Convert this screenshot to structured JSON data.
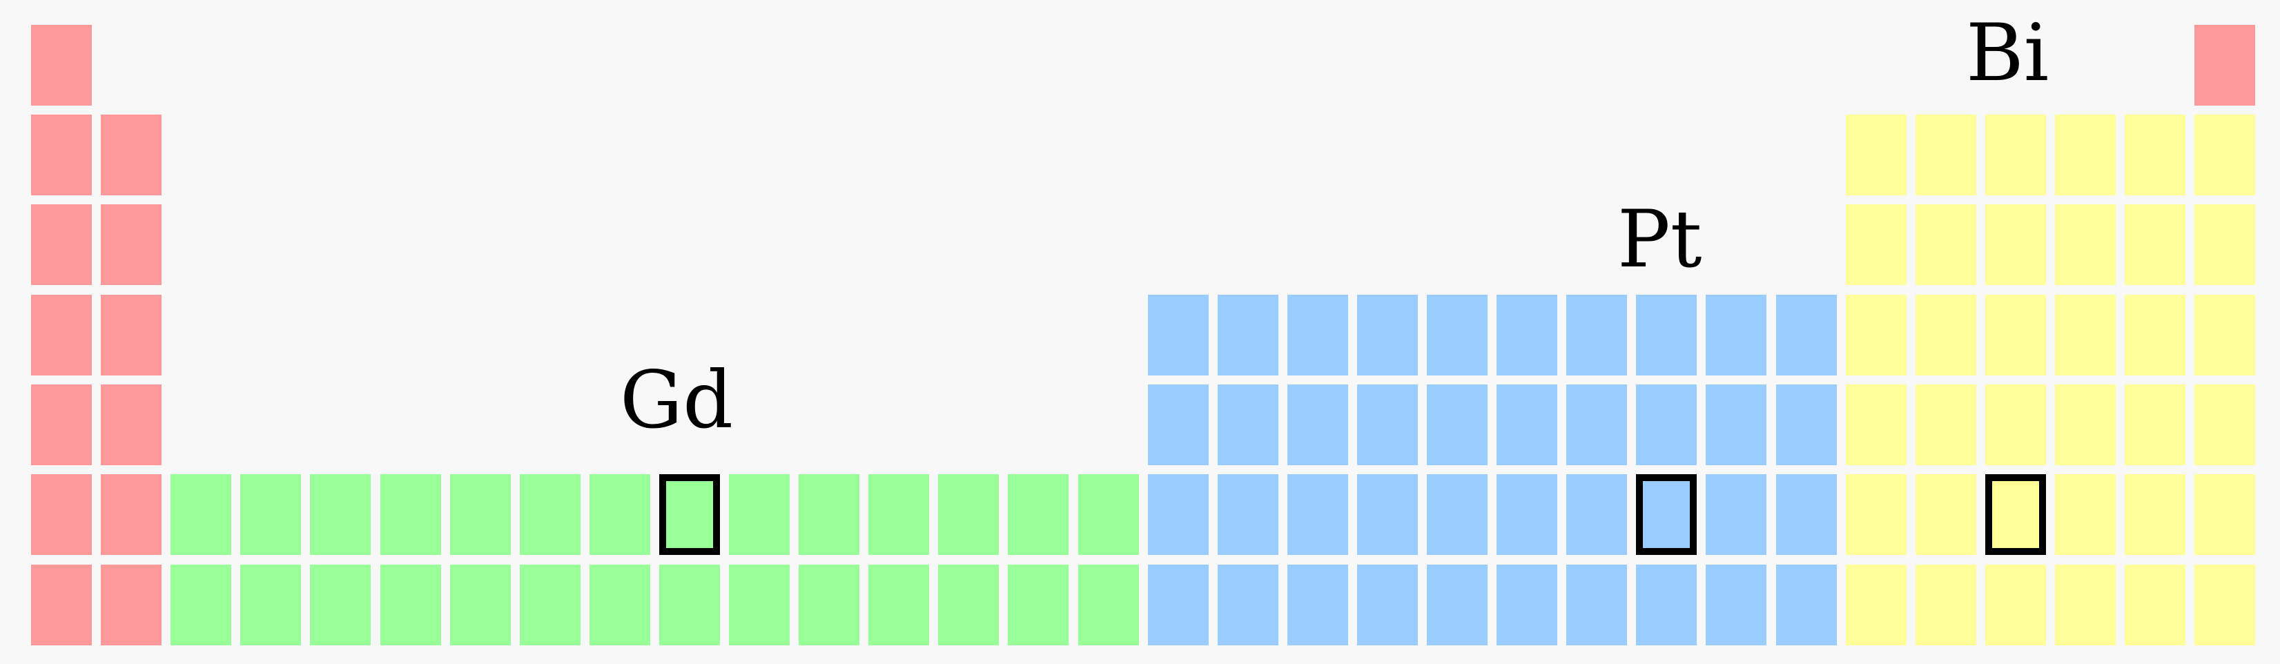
{
  "colors": {
    "background": "#f8f8f8",
    "s_block": "#ff9999",
    "f_block": "#99ff99",
    "d_block": "#99ccff",
    "p_block": "#ffff99",
    "highlight_border": "#000000"
  },
  "labels": {
    "gd": "Gd",
    "pt": "Pt",
    "bi": "Bi"
  },
  "blocks": [
    {
      "name": "s-block",
      "color_key": "s_block",
      "col_start": 0,
      "col_count": 1,
      "row_start": 0,
      "row_end": 6
    },
    {
      "name": "s-block",
      "color_key": "s_block",
      "col_start": 1,
      "col_count": 1,
      "row_start": 1,
      "row_end": 6
    },
    {
      "name": "f-block",
      "color_key": "f_block",
      "col_start": 2,
      "col_count": 14,
      "row_start": 5,
      "row_end": 6
    },
    {
      "name": "d-block",
      "color_key": "d_block",
      "col_start": 16,
      "col_count": 10,
      "row_start": 3,
      "row_end": 6
    },
    {
      "name": "p-block",
      "color_key": "p_block",
      "col_start": 26,
      "col_count": 6,
      "row_start": 1,
      "row_end": 6
    },
    {
      "name": "s-block-helium",
      "color_key": "s_block",
      "col_start": 31,
      "col_count": 1,
      "row_start": 0,
      "row_end": 0
    }
  ],
  "highlights": [
    {
      "element": "gd",
      "col": 9,
      "row": 5
    },
    {
      "element": "pt",
      "col": 23,
      "row": 5
    },
    {
      "element": "bi",
      "col": 28,
      "row": 5
    }
  ]
}
